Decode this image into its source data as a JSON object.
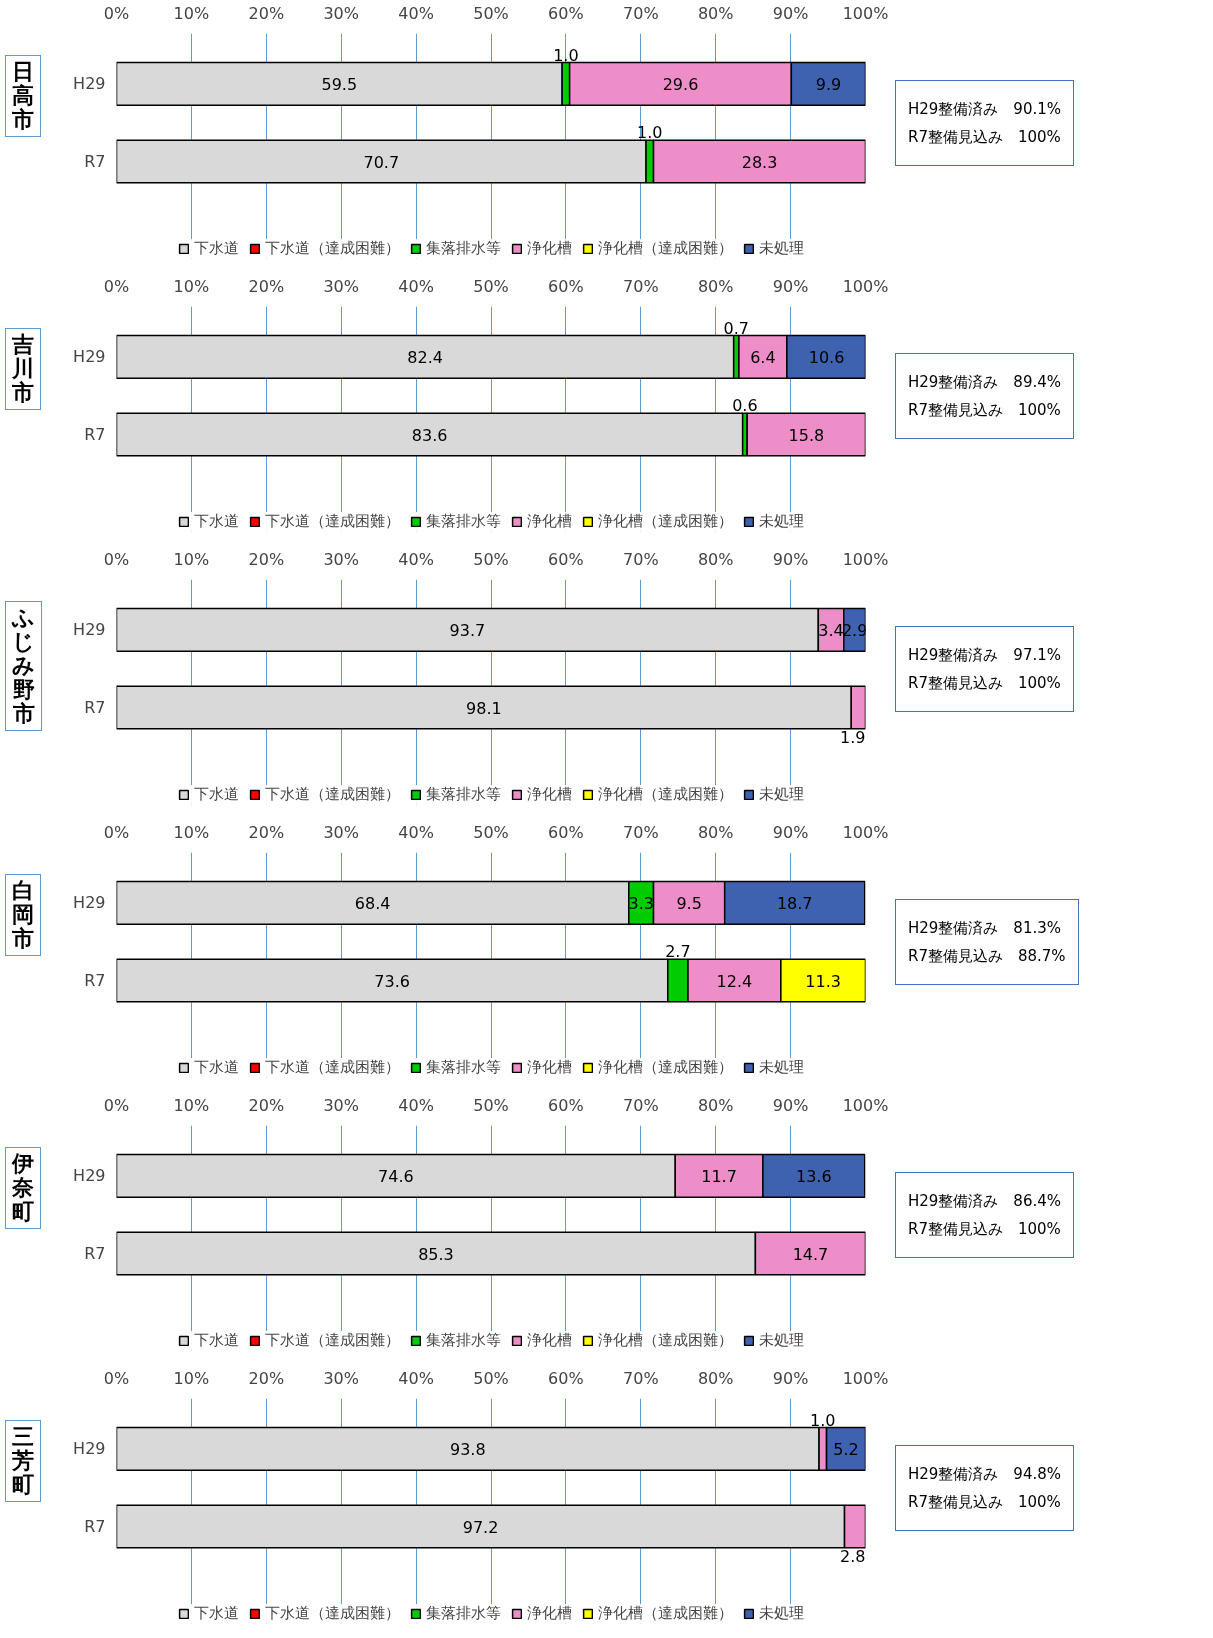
{
  "chart_data": [
    {
      "type": "bar",
      "orientation": "horizontal",
      "stacked": true,
      "title": "日高市",
      "categories": [
        "H29",
        "R7"
      ],
      "xlim": [
        0,
        100
      ],
      "xticks": [
        {
          "value": 0,
          "label": "0%"
        },
        {
          "value": 10,
          "label": "10%"
        },
        {
          "value": 20,
          "label": "20%"
        },
        {
          "value": 30,
          "label": "30%"
        },
        {
          "value": 40,
          "label": "40%"
        },
        {
          "value": 50,
          "label": "50%"
        },
        {
          "value": 60,
          "label": "60%"
        },
        {
          "value": 70,
          "label": "70%"
        },
        {
          "value": 80,
          "label": "80%"
        },
        {
          "value": 90,
          "label": "90%"
        },
        {
          "value": 100,
          "label": "100%"
        }
      ],
      "grid": "x",
      "legend": "bottom",
      "annotations": [
        "H29整備済み　90.1%",
        "R7整備見込み　100%"
      ],
      "series": [
        {
          "name": "下水道",
          "color": "#d9d9d9",
          "values": [
            59.5,
            70.7
          ],
          "value_labels": [
            "59.5",
            "70.7"
          ]
        },
        {
          "name": "下水道（達成困難）",
          "color": "#ff0000",
          "values": [
            null,
            null
          ]
        },
        {
          "name": "集落排水等",
          "color": "#00cc00",
          "values": [
            1.0,
            1.0
          ],
          "value_labels": [
            "1.0",
            "1.0"
          ]
        },
        {
          "name": "浄化槽",
          "color": "#ee8ec8",
          "values": [
            29.6,
            28.3
          ],
          "value_labels": [
            "29.6",
            "28.3"
          ]
        },
        {
          "name": "浄化槽（達成困難）",
          "color": "#ffff00",
          "values": [
            null,
            null
          ]
        },
        {
          "name": "未処理",
          "color": "#3f62b0",
          "values": [
            9.9,
            null
          ],
          "value_labels": [
            "9.9",
            null
          ]
        }
      ]
    },
    {
      "type": "bar",
      "orientation": "horizontal",
      "stacked": true,
      "title": "吉川市",
      "categories": [
        "H29",
        "R7"
      ],
      "xlim": [
        0,
        100
      ],
      "xticks": [
        {
          "value": 0,
          "label": "0%"
        },
        {
          "value": 10,
          "label": "10%"
        },
        {
          "value": 20,
          "label": "20%"
        },
        {
          "value": 30,
          "label": "30%"
        },
        {
          "value": 40,
          "label": "40%"
        },
        {
          "value": 50,
          "label": "50%"
        },
        {
          "value": 60,
          "label": "60%"
        },
        {
          "value": 70,
          "label": "70%"
        },
        {
          "value": 80,
          "label": "80%"
        },
        {
          "value": 90,
          "label": "90%"
        },
        {
          "value": 100,
          "label": "100%"
        }
      ],
      "grid": "x",
      "legend": "bottom",
      "annotations": [
        "H29整備済み　89.4%",
        "R7整備見込み　100%"
      ],
      "series": [
        {
          "name": "下水道",
          "color": "#d9d9d9",
          "values": [
            82.4,
            83.6
          ],
          "value_labels": [
            "82.4",
            "83.6"
          ]
        },
        {
          "name": "下水道（達成困難）",
          "color": "#ff0000",
          "values": [
            null,
            null
          ]
        },
        {
          "name": "集落排水等",
          "color": "#00cc00",
          "values": [
            0.7,
            0.6
          ],
          "value_labels": [
            "0.7",
            "0.6"
          ]
        },
        {
          "name": "浄化槽",
          "color": "#ee8ec8",
          "values": [
            6.4,
            15.8
          ],
          "value_labels": [
            "6.4",
            "15.8"
          ]
        },
        {
          "name": "浄化槽（達成困難）",
          "color": "#ffff00",
          "values": [
            null,
            null
          ]
        },
        {
          "name": "未処理",
          "color": "#3f62b0",
          "values": [
            10.6,
            null
          ],
          "value_labels": [
            "10.6",
            null
          ]
        }
      ]
    },
    {
      "type": "bar",
      "orientation": "horizontal",
      "stacked": true,
      "title": "ふじみ野市",
      "categories": [
        "H29",
        "R7"
      ],
      "xlim": [
        0,
        100
      ],
      "xticks": [
        {
          "value": 0,
          "label": "0%"
        },
        {
          "value": 10,
          "label": "10%"
        },
        {
          "value": 20,
          "label": "20%"
        },
        {
          "value": 30,
          "label": "30%"
        },
        {
          "value": 40,
          "label": "40%"
        },
        {
          "value": 50,
          "label": "50%"
        },
        {
          "value": 60,
          "label": "60%"
        },
        {
          "value": 70,
          "label": "70%"
        },
        {
          "value": 80,
          "label": "80%"
        },
        {
          "value": 90,
          "label": "90%"
        },
        {
          "value": 100,
          "label": "100%"
        }
      ],
      "grid": "x",
      "legend": "bottom",
      "annotations": [
        "H29整備済み　97.1%",
        "R7整備見込み　100%"
      ],
      "series": [
        {
          "name": "下水道",
          "color": "#d9d9d9",
          "values": [
            93.7,
            98.1
          ],
          "value_labels": [
            "93.7",
            "98.1"
          ]
        },
        {
          "name": "下水道（達成困難）",
          "color": "#ff0000",
          "values": [
            null,
            null
          ]
        },
        {
          "name": "集落排水等",
          "color": "#00cc00",
          "values": [
            null,
            null
          ]
        },
        {
          "name": "浄化槽",
          "color": "#ee8ec8",
          "values": [
            3.4,
            1.9
          ],
          "value_labels": [
            "3.4",
            "1.9"
          ]
        },
        {
          "name": "浄化槽（達成困難）",
          "color": "#ffff00",
          "values": [
            null,
            null
          ]
        },
        {
          "name": "未処理",
          "color": "#3f62b0",
          "values": [
            2.9,
            null
          ],
          "value_labels": [
            "2.9",
            null
          ]
        }
      ]
    },
    {
      "type": "bar",
      "orientation": "horizontal",
      "stacked": true,
      "title": "白岡市",
      "categories": [
        "H29",
        "R7"
      ],
      "xlim": [
        0,
        100
      ],
      "xticks": [
        {
          "value": 0,
          "label": "0%"
        },
        {
          "value": 10,
          "label": "10%"
        },
        {
          "value": 20,
          "label": "20%"
        },
        {
          "value": 30,
          "label": "30%"
        },
        {
          "value": 40,
          "label": "40%"
        },
        {
          "value": 50,
          "label": "50%"
        },
        {
          "value": 60,
          "label": "60%"
        },
        {
          "value": 70,
          "label": "70%"
        },
        {
          "value": 80,
          "label": "80%"
        },
        {
          "value": 90,
          "label": "90%"
        },
        {
          "value": 100,
          "label": "100%"
        }
      ],
      "grid": "x",
      "legend": "bottom",
      "annotations": [
        "H29整備済み　81.3%",
        "R7整備見込み　88.7%"
      ],
      "series": [
        {
          "name": "下水道",
          "color": "#d9d9d9",
          "values": [
            68.4,
            73.6
          ],
          "value_labels": [
            "68.4",
            "73.6"
          ]
        },
        {
          "name": "下水道（達成困難）",
          "color": "#ff0000",
          "values": [
            null,
            null
          ]
        },
        {
          "name": "集落排水等",
          "color": "#00cc00",
          "values": [
            3.3,
            2.7
          ],
          "value_labels": [
            "3.3",
            "2.7"
          ]
        },
        {
          "name": "浄化槽",
          "color": "#ee8ec8",
          "values": [
            9.5,
            12.4
          ],
          "value_labels": [
            "9.5",
            "12.4"
          ]
        },
        {
          "name": "浄化槽（達成困難）",
          "color": "#ffff00",
          "values": [
            null,
            11.3
          ],
          "value_labels": [
            null,
            "11.3"
          ]
        },
        {
          "name": "未処理",
          "color": "#3f62b0",
          "values": [
            18.7,
            null
          ],
          "value_labels": [
            "18.7",
            null
          ]
        }
      ]
    },
    {
      "type": "bar",
      "orientation": "horizontal",
      "stacked": true,
      "title": "伊奈町",
      "categories": [
        "H29",
        "R7"
      ],
      "xlim": [
        0,
        100
      ],
      "xticks": [
        {
          "value": 0,
          "label": "0%"
        },
        {
          "value": 10,
          "label": "10%"
        },
        {
          "value": 20,
          "label": "20%"
        },
        {
          "value": 30,
          "label": "30%"
        },
        {
          "value": 40,
          "label": "40%"
        },
        {
          "value": 50,
          "label": "50%"
        },
        {
          "value": 60,
          "label": "60%"
        },
        {
          "value": 70,
          "label": "70%"
        },
        {
          "value": 80,
          "label": "80%"
        },
        {
          "value": 90,
          "label": "90%"
        },
        {
          "value": 100,
          "label": "100%"
        }
      ],
      "grid": "x",
      "legend": "bottom",
      "annotations": [
        "H29整備済み　86.4%",
        "R7整備見込み　100%"
      ],
      "series": [
        {
          "name": "下水道",
          "color": "#d9d9d9",
          "values": [
            74.6,
            85.3
          ],
          "value_labels": [
            "74.6",
            "85.3"
          ]
        },
        {
          "name": "下水道（達成困難）",
          "color": "#ff0000",
          "values": [
            null,
            null
          ]
        },
        {
          "name": "集落排水等",
          "color": "#00cc00",
          "values": [
            null,
            null
          ]
        },
        {
          "name": "浄化槽",
          "color": "#ee8ec8",
          "values": [
            11.7,
            14.7
          ],
          "value_labels": [
            "11.7",
            "14.7"
          ]
        },
        {
          "name": "浄化槽（達成困難）",
          "color": "#ffff00",
          "values": [
            null,
            null
          ]
        },
        {
          "name": "未処理",
          "color": "#3f62b0",
          "values": [
            13.6,
            null
          ],
          "value_labels": [
            "13.6",
            null
          ]
        }
      ]
    },
    {
      "type": "bar",
      "orientation": "horizontal",
      "stacked": true,
      "title": "三芳町",
      "categories": [
        "H29",
        "R7"
      ],
      "xlim": [
        0,
        100
      ],
      "xticks": [
        {
          "value": 0,
          "label": "0%"
        },
        {
          "value": 10,
          "label": "10%"
        },
        {
          "value": 20,
          "label": "20%"
        },
        {
          "value": 30,
          "label": "30%"
        },
        {
          "value": 40,
          "label": "40%"
        },
        {
          "value": 50,
          "label": "50%"
        },
        {
          "value": 60,
          "label": "60%"
        },
        {
          "value": 70,
          "label": "70%"
        },
        {
          "value": 80,
          "label": "80%"
        },
        {
          "value": 90,
          "label": "90%"
        },
        {
          "value": 100,
          "label": "100%"
        }
      ],
      "grid": "x",
      "legend": "bottom",
      "annotations": [
        "H29整備済み　94.8%",
        "R7整備見込み　100%"
      ],
      "series": [
        {
          "name": "下水道",
          "color": "#d9d9d9",
          "values": [
            93.8,
            97.2
          ],
          "value_labels": [
            "93.8",
            "97.2"
          ]
        },
        {
          "name": "下水道（達成困難）",
          "color": "#ff0000",
          "values": [
            null,
            null
          ]
        },
        {
          "name": "集落排水等",
          "color": "#00cc00",
          "values": [
            null,
            null
          ]
        },
        {
          "name": "浄化槽",
          "color": "#ee8ec8",
          "values": [
            1.0,
            2.8
          ],
          "value_labels": [
            "1.0",
            "2.8"
          ]
        },
        {
          "name": "浄化槽（達成困難）",
          "color": "#ffff00",
          "values": [
            null,
            null
          ]
        },
        {
          "name": "未処理",
          "color": "#3f62b0",
          "values": [
            5.2,
            null
          ],
          "value_labels": [
            "5.2",
            null
          ]
        }
      ]
    }
  ]
}
